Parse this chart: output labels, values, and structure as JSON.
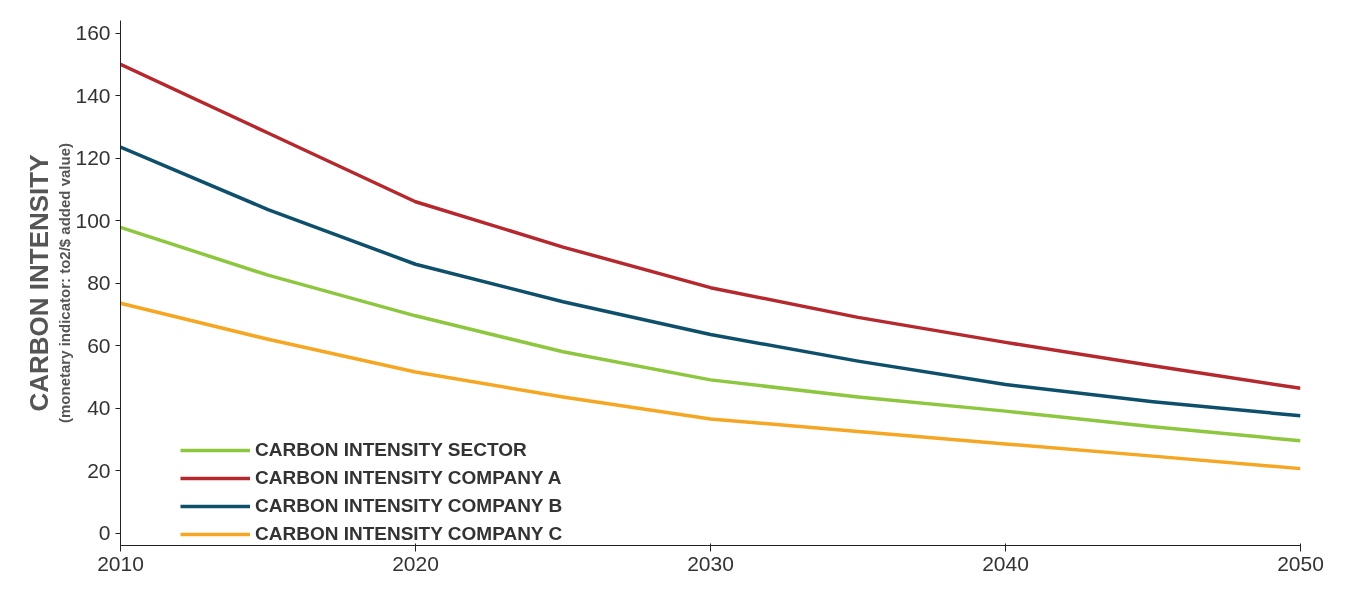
{
  "chart_data": {
    "type": "line",
    "ylabel": "CARBON INTENSITY",
    "annotations": [
      "(monetary indicator: tо2/$ added value)"
    ],
    "x": [
      2010,
      2015,
      2020,
      2025,
      2030,
      2035,
      2040,
      2045,
      2050
    ],
    "series": [
      {
        "name": "CARBON INTENSITY SECTOR",
        "color": "#8dc63f",
        "values": [
          97.8,
          82.5,
          69.5,
          58,
          49,
          43.5,
          39,
          34,
          29.5
        ]
      },
      {
        "name": "CARBON INTENSITY COMPANY A",
        "color": "#b5282e",
        "values": [
          150,
          128,
          106,
          91.5,
          78.5,
          69,
          61,
          53.5,
          46.3
        ]
      },
      {
        "name": "CARBON INTENSITY COMPANY B",
        "color": "#0e4f6b",
        "values": [
          123.5,
          103.5,
          86,
          74,
          63.5,
          55,
          47.5,
          42,
          37.5
        ]
      },
      {
        "name": "CARBON INTENSITY COMPANY C",
        "color": "#f5a623",
        "values": [
          73.5,
          62,
          51.5,
          43.5,
          36.5,
          32.5,
          28.5,
          24.6,
          20.6
        ]
      }
    ],
    "xlim": [
      2010,
      2050
    ],
    "xticks": [
      2010,
      2020,
      2030,
      2040,
      2050
    ],
    "ylim": [
      -4,
      164
    ],
    "yticks": [
      0,
      20,
      40,
      60,
      80,
      100,
      120,
      140,
      160
    ],
    "grid": false,
    "legend": "bottom left",
    "marker": "none",
    "line_style": "solid"
  }
}
